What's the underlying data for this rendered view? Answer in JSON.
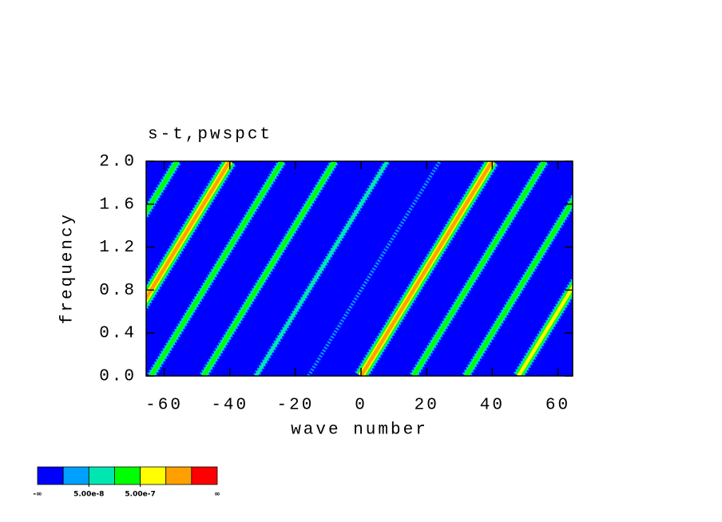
{
  "chart_data": {
    "type": "contour",
    "title": "s-t,pwspct",
    "xlabel": "wave number",
    "ylabel": "frequency",
    "xlim": [
      -65.5,
      64.5
    ],
    "ylim": [
      0,
      2
    ],
    "xticks": [
      -60,
      -40,
      -20,
      0,
      20,
      40,
      60
    ],
    "yticks": [
      {
        "value": 0,
        "label": "0.0"
      },
      {
        "value": 0.4,
        "label": "0.4"
      },
      {
        "value": 0.8,
        "label": "0.8"
      },
      {
        "value": 1.2,
        "label": "1.2"
      },
      {
        "value": 1.6,
        "label": "1.6"
      },
      {
        "value": 2,
        "label": "2.0"
      }
    ],
    "background_level": 0,
    "series": [
      {
        "x": [
          -96,
          -56
        ],
        "values": [
          0,
          2
        ],
        "level": 3
      },
      {
        "x": [
          -80,
          -40
        ],
        "values": [
          0,
          2
        ],
        "level": 5
      },
      {
        "x": [
          -64,
          -24
        ],
        "values": [
          0,
          2
        ],
        "level": 3
      },
      {
        "x": [
          -48,
          -8
        ],
        "values": [
          0,
          2
        ],
        "level": 3
      },
      {
        "x": [
          -32,
          8
        ],
        "values": [
          0,
          2
        ],
        "level": 2
      },
      {
        "x": [
          -16,
          24
        ],
        "values": [
          0,
          2
        ],
        "level": 1
      },
      {
        "x": [
          0,
          40
        ],
        "values": [
          0,
          2
        ],
        "level": 5
      },
      {
        "x": [
          16,
          56
        ],
        "values": [
          0,
          2
        ],
        "level": 3
      },
      {
        "x": [
          32,
          72
        ],
        "values": [
          0,
          2
        ],
        "level": 3
      },
      {
        "x": [
          48,
          88
        ],
        "values": [
          0,
          2
        ],
        "level": 4
      }
    ],
    "colorbar": {
      "colors": [
        "#0000ff",
        "#00a0ff",
        "#00e6b0",
        "#00ff00",
        "#ffff00",
        "#ffa000",
        "#ff0000"
      ],
      "low_label": "-∞",
      "high_label": "∞",
      "ticks": [
        {
          "value": 5e-08,
          "label": "5.00e-8"
        },
        {
          "value": 5e-07,
          "label": "5.00e-7"
        }
      ]
    }
  }
}
